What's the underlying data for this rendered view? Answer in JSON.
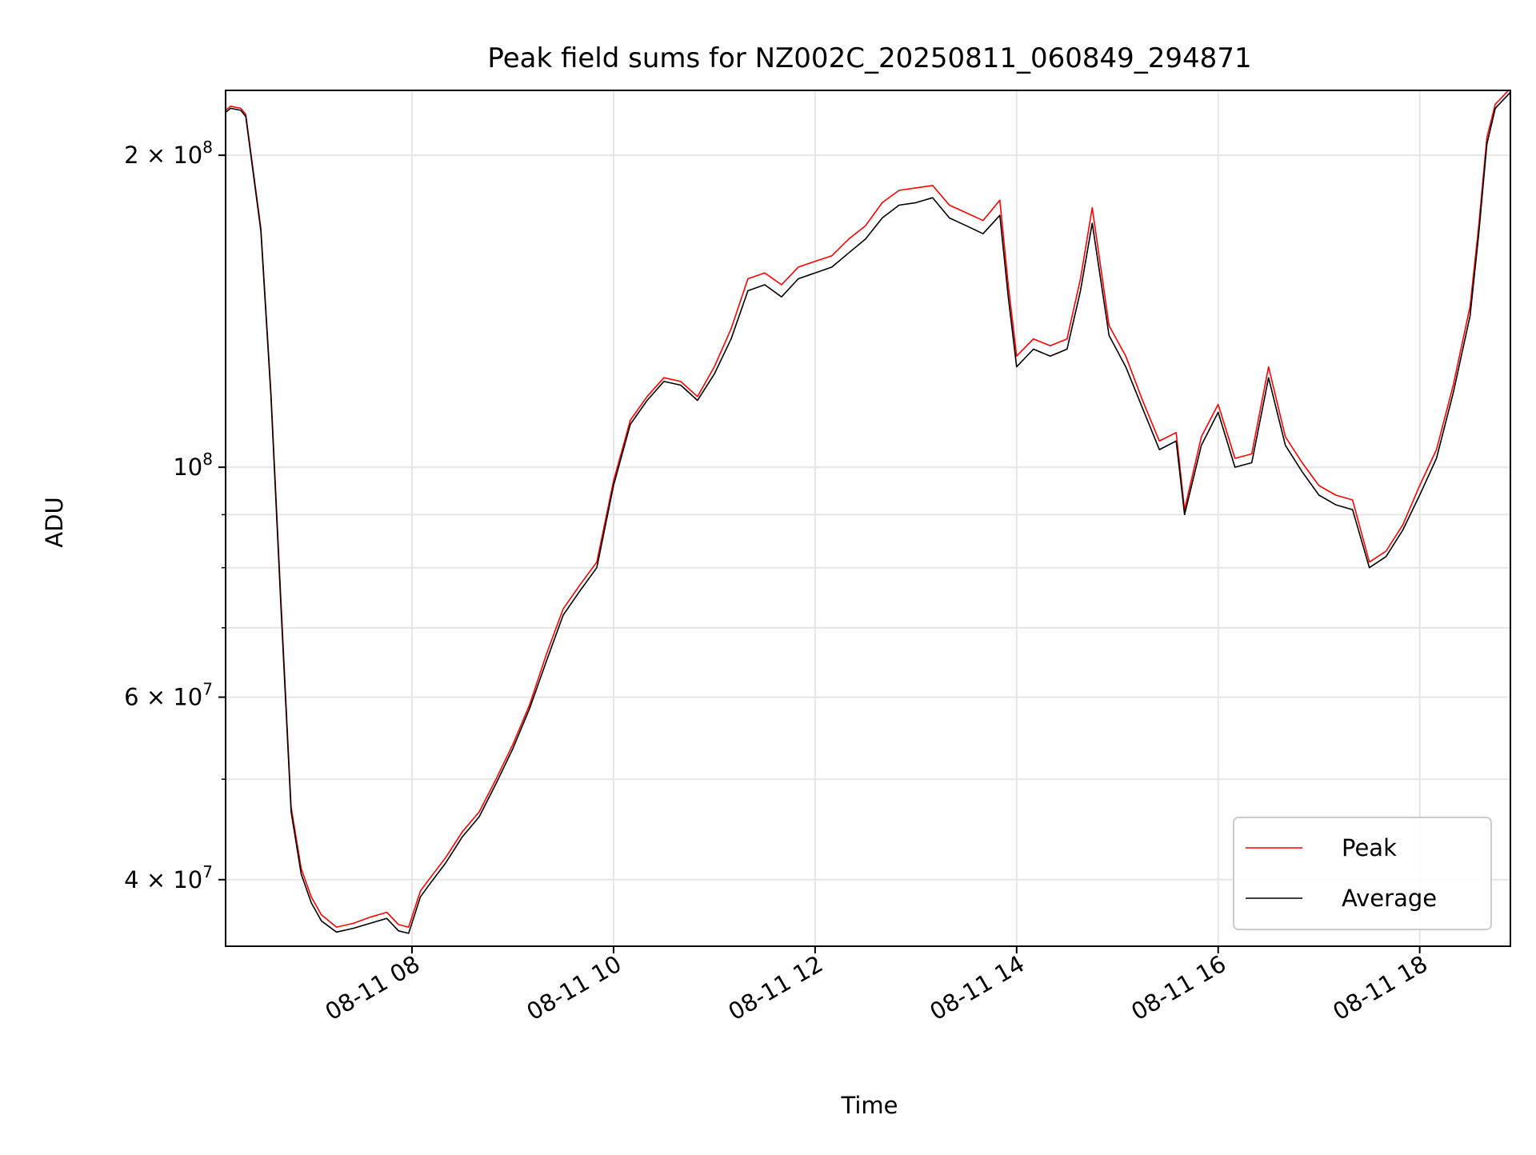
{
  "chart_data": {
    "type": "line",
    "title": "Peak field sums for NZ002C_20250811_060849_294871",
    "xlabel": "Time",
    "ylabel": "ADU",
    "y_scale": "log",
    "xlim": [
      "2025-08-11 06:09",
      "2025-08-11 18:54"
    ],
    "ylim": [
      34500000,
      231000000
    ],
    "x_ticks": [
      "2025-08-11 08:00",
      "2025-08-11 10:00",
      "2025-08-11 12:00",
      "2025-08-11 14:00",
      "2025-08-11 16:00",
      "2025-08-11 18:00"
    ],
    "x_tick_labels": [
      "08-11 08",
      "08-11 10",
      "08-11 12",
      "08-11 14",
      "08-11 16",
      "08-11 18"
    ],
    "y_major_ticks": [
      {
        "value": 40000000,
        "mantissa": "4",
        "exp": "7"
      },
      {
        "value": 60000000,
        "mantissa": "6",
        "exp": "7"
      },
      {
        "value": 100000000,
        "mantissa": "",
        "exp": "8"
      },
      {
        "value": 200000000,
        "mantissa": "2",
        "exp": "8"
      }
    ],
    "y_minor_gridlines": [
      50000000,
      70000000,
      80000000,
      90000000
    ],
    "grid": true,
    "legend_position": "lower-right",
    "series": [
      {
        "name": "Peak",
        "color": "#ff0000",
        "x": [
          "2025-08-11 06:09",
          "2025-08-11 06:12",
          "2025-08-11 06:18",
          "2025-08-11 06:21",
          "2025-08-11 06:30",
          "2025-08-11 06:36",
          "2025-08-11 06:42",
          "2025-08-11 06:48",
          "2025-08-11 06:54",
          "2025-08-11 07:00",
          "2025-08-11 07:06",
          "2025-08-11 07:15",
          "2025-08-11 07:25",
          "2025-08-11 07:35",
          "2025-08-11 07:45",
          "2025-08-11 07:52",
          "2025-08-11 07:58",
          "2025-08-11 08:05",
          "2025-08-11 08:10",
          "2025-08-11 08:20",
          "2025-08-11 08:30",
          "2025-08-11 08:40",
          "2025-08-11 08:50",
          "2025-08-11 09:00",
          "2025-08-11 09:10",
          "2025-08-11 09:20",
          "2025-08-11 09:30",
          "2025-08-11 09:40",
          "2025-08-11 09:50",
          "2025-08-11 10:00",
          "2025-08-11 10:10",
          "2025-08-11 10:20",
          "2025-08-11 10:30",
          "2025-08-11 10:40",
          "2025-08-11 10:50",
          "2025-08-11 11:00",
          "2025-08-11 11:10",
          "2025-08-11 11:20",
          "2025-08-11 11:30",
          "2025-08-11 11:40",
          "2025-08-11 11:50",
          "2025-08-11 12:00",
          "2025-08-11 12:10",
          "2025-08-11 12:20",
          "2025-08-11 12:30",
          "2025-08-11 12:40",
          "2025-08-11 12:50",
          "2025-08-11 13:00",
          "2025-08-11 13:10",
          "2025-08-11 13:20",
          "2025-08-11 13:30",
          "2025-08-11 13:40",
          "2025-08-11 13:50",
          "2025-08-11 13:55",
          "2025-08-11 14:00",
          "2025-08-11 14:10",
          "2025-08-11 14:20",
          "2025-08-11 14:30",
          "2025-08-11 14:38",
          "2025-08-11 14:45",
          "2025-08-11 14:55",
          "2025-08-11 15:05",
          "2025-08-11 15:15",
          "2025-08-11 15:25",
          "2025-08-11 15:35",
          "2025-08-11 15:40",
          "2025-08-11 15:50",
          "2025-08-11 16:00",
          "2025-08-11 16:10",
          "2025-08-11 16:20",
          "2025-08-11 16:30",
          "2025-08-11 16:40",
          "2025-08-11 16:50",
          "2025-08-11 17:00",
          "2025-08-11 17:10",
          "2025-08-11 17:20",
          "2025-08-11 17:30",
          "2025-08-11 17:40",
          "2025-08-11 17:50",
          "2025-08-11 18:00",
          "2025-08-11 18:10",
          "2025-08-11 18:20",
          "2025-08-11 18:30",
          "2025-08-11 18:35",
          "2025-08-11 18:40",
          "2025-08-11 18:45",
          "2025-08-11 18:54"
        ],
        "y": [
          221000000,
          223000000,
          222000000,
          219000000,
          170000000,
          118000000,
          74000000,
          47000000,
          41000000,
          38500000,
          37000000,
          36000000,
          36300000,
          36800000,
          37200000,
          36200000,
          36000000,
          39000000,
          40000000,
          42000000,
          44500000,
          46500000,
          50000000,
          54000000,
          59000000,
          66000000,
          73000000,
          77000000,
          81000000,
          97000000,
          111000000,
          117000000,
          122000000,
          121000000,
          117000000,
          125000000,
          136000000,
          152000000,
          154000000,
          150000000,
          156000000,
          158000000,
          160000000,
          166000000,
          171000000,
          180000000,
          185000000,
          186000000,
          187000000,
          179000000,
          176000000,
          173000000,
          181000000,
          150000000,
          128000000,
          133000000,
          131000000,
          133000000,
          152000000,
          178000000,
          137000000,
          128000000,
          116000000,
          106000000,
          108000000,
          91000000,
          107000000,
          115000000,
          102000000,
          103000000,
          125000000,
          107000000,
          101000000,
          96000000,
          94000000,
          93000000,
          81000000,
          83000000,
          88000000,
          96000000,
          104000000,
          120000000,
          143000000,
          170000000,
          208000000,
          224000000,
          232000000
        ]
      },
      {
        "name": "Average",
        "color": "#000000",
        "x": [
          "2025-08-11 06:09",
          "2025-08-11 06:12",
          "2025-08-11 06:18",
          "2025-08-11 06:21",
          "2025-08-11 06:30",
          "2025-08-11 06:36",
          "2025-08-11 06:42",
          "2025-08-11 06:48",
          "2025-08-11 06:54",
          "2025-08-11 07:00",
          "2025-08-11 07:06",
          "2025-08-11 07:15",
          "2025-08-11 07:25",
          "2025-08-11 07:35",
          "2025-08-11 07:45",
          "2025-08-11 07:52",
          "2025-08-11 07:58",
          "2025-08-11 08:05",
          "2025-08-11 08:10",
          "2025-08-11 08:20",
          "2025-08-11 08:30",
          "2025-08-11 08:40",
          "2025-08-11 08:50",
          "2025-08-11 09:00",
          "2025-08-11 09:10",
          "2025-08-11 09:20",
          "2025-08-11 09:30",
          "2025-08-11 09:40",
          "2025-08-11 09:50",
          "2025-08-11 10:00",
          "2025-08-11 10:10",
          "2025-08-11 10:20",
          "2025-08-11 10:30",
          "2025-08-11 10:40",
          "2025-08-11 10:50",
          "2025-08-11 11:00",
          "2025-08-11 11:10",
          "2025-08-11 11:20",
          "2025-08-11 11:30",
          "2025-08-11 11:40",
          "2025-08-11 11:50",
          "2025-08-11 12:00",
          "2025-08-11 12:10",
          "2025-08-11 12:20",
          "2025-08-11 12:30",
          "2025-08-11 12:40",
          "2025-08-11 12:50",
          "2025-08-11 13:00",
          "2025-08-11 13:10",
          "2025-08-11 13:20",
          "2025-08-11 13:30",
          "2025-08-11 13:40",
          "2025-08-11 13:50",
          "2025-08-11 13:55",
          "2025-08-11 14:00",
          "2025-08-11 14:10",
          "2025-08-11 14:20",
          "2025-08-11 14:30",
          "2025-08-11 14:38",
          "2025-08-11 14:45",
          "2025-08-11 14:55",
          "2025-08-11 15:05",
          "2025-08-11 15:15",
          "2025-08-11 15:25",
          "2025-08-11 15:35",
          "2025-08-11 15:40",
          "2025-08-11 15:50",
          "2025-08-11 16:00",
          "2025-08-11 16:10",
          "2025-08-11 16:20",
          "2025-08-11 16:30",
          "2025-08-11 16:40",
          "2025-08-11 16:50",
          "2025-08-11 17:00",
          "2025-08-11 17:10",
          "2025-08-11 17:20",
          "2025-08-11 17:30",
          "2025-08-11 17:40",
          "2025-08-11 17:50",
          "2025-08-11 18:00",
          "2025-08-11 18:10",
          "2025-08-11 18:20",
          "2025-08-11 18:30",
          "2025-08-11 18:35",
          "2025-08-11 18:40",
          "2025-08-11 18:45",
          "2025-08-11 18:54"
        ],
        "y": [
          220000000,
          222000000,
          221000000,
          218000000,
          169000000,
          117000000,
          73000000,
          46500000,
          40500000,
          38000000,
          36500000,
          35600000,
          35900000,
          36300000,
          36700000,
          35700000,
          35500000,
          38500000,
          39500000,
          41500000,
          44000000,
          46000000,
          49500000,
          53500000,
          58500000,
          65000000,
          72000000,
          76000000,
          80000000,
          96000000,
          110000000,
          116000000,
          121000000,
          120000000,
          116000000,
          123000000,
          133000000,
          148000000,
          150000000,
          146000000,
          152000000,
          154000000,
          156000000,
          161000000,
          166000000,
          174000000,
          179000000,
          180000000,
          182000000,
          174000000,
          171000000,
          168000000,
          175000000,
          146000000,
          125000000,
          130000000,
          128000000,
          130000000,
          148000000,
          172000000,
          134000000,
          125000000,
          114000000,
          104000000,
          106000000,
          90000000,
          105000000,
          113000000,
          100000000,
          101000000,
          122000000,
          105000000,
          99000000,
          94000000,
          92000000,
          91000000,
          80000000,
          82000000,
          87000000,
          94000000,
          102000000,
          118000000,
          140000000,
          167000000,
          205000000,
          222000000,
          230000000
        ]
      }
    ]
  }
}
